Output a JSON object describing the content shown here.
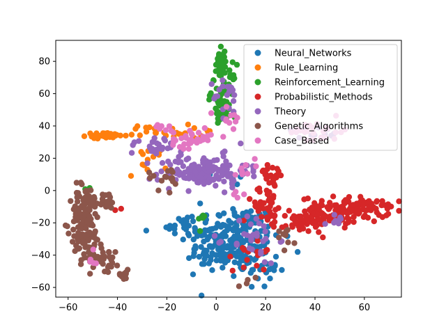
{
  "chart_data": {
    "type": "scatter",
    "title": "",
    "xlabel": "",
    "ylabel": "",
    "xlim": [
      -65,
      75
    ],
    "ylim": [
      -66,
      93
    ],
    "xticks": [
      -60,
      -40,
      -20,
      0,
      20,
      40,
      60
    ],
    "yticks": [
      -60,
      -40,
      -20,
      0,
      20,
      40,
      60,
      80
    ],
    "grid": false,
    "legend_position": "top-right",
    "series": [
      {
        "name": "Neural_Networks",
        "color": "#1f77b4",
        "clusters": [
          {
            "cx": 8,
            "cy": -30,
            "sx": 9,
            "sy": 11,
            "n": 190
          },
          {
            "cx": 0,
            "cy": -38,
            "sx": 6,
            "sy": 6,
            "n": 40
          },
          {
            "cx": 17,
            "cy": -48,
            "sx": 4,
            "sy": 6,
            "n": 25
          },
          {
            "cx": -12,
            "cy": -22,
            "sx": 4,
            "sy": 6,
            "n": 25
          },
          {
            "cx": -42,
            "cy": 35,
            "sx": 1,
            "sy": 1,
            "n": 3
          },
          {
            "cx": 6,
            "cy": 8,
            "sx": 4,
            "sy": 4,
            "n": 8
          }
        ]
      },
      {
        "name": "Rule_Learning",
        "color": "#ff7f0e",
        "clusters": [
          {
            "cx": -45,
            "cy": 34,
            "sx": 4,
            "sy": 0.8,
            "n": 45
          },
          {
            "cx": -23,
            "cy": 37,
            "sx": 6,
            "sy": 2,
            "n": 25
          },
          {
            "cx": -28,
            "cy": 18,
            "sx": 4,
            "sy": 5,
            "n": 12
          },
          {
            "cx": -5,
            "cy": 34,
            "sx": 2,
            "sy": 2,
            "n": 5
          }
        ]
      },
      {
        "name": "Reinforcement_Learning",
        "color": "#2ca02c",
        "clusters": [
          {
            "cx": 2,
            "cy": 79,
            "sx": 1.2,
            "sy": 4,
            "n": 35
          },
          {
            "cx": 3,
            "cy": 62,
            "sx": 2.5,
            "sy": 8,
            "n": 55
          },
          {
            "cx": 3,
            "cy": 47,
            "sx": 2.5,
            "sy": 3,
            "n": 20
          },
          {
            "cx": -6,
            "cy": -20,
            "sx": 2,
            "sy": 3,
            "n": 5
          },
          {
            "cx": -52,
            "cy": 1,
            "sx": 1,
            "sy": 1,
            "n": 2
          }
        ]
      },
      {
        "name": "Probabilistic_Methods",
        "color": "#d62728",
        "clusters": [
          {
            "cx": 52,
            "cy": -12,
            "sx": 9,
            "sy": 4,
            "n": 120
          },
          {
            "cx": 63,
            "cy": -8,
            "sx": 3,
            "sy": 1,
            "n": 20
          },
          {
            "cx": 35,
            "cy": -20,
            "sx": 6,
            "sy": 3,
            "n": 60
          },
          {
            "cx": 22,
            "cy": 10,
            "sx": 3,
            "sy": 4,
            "n": 20
          },
          {
            "cx": 20,
            "cy": -8,
            "sx": 5,
            "sy": 5,
            "n": 35
          },
          {
            "cx": 15,
            "cy": -38,
            "sx": 4,
            "sy": 6,
            "n": 18
          },
          {
            "cx": -40,
            "cy": -11,
            "sx": 1,
            "sy": 1,
            "n": 2
          }
        ]
      },
      {
        "name": "Theory",
        "color": "#9467bd",
        "clusters": [
          {
            "cx": -5,
            "cy": 12,
            "sx": 9,
            "sy": 5,
            "n": 140
          },
          {
            "cx": 5,
            "cy": 58,
            "sx": 3,
            "sy": 6,
            "n": 20
          },
          {
            "cx": -25,
            "cy": 28,
            "sx": 5,
            "sy": 3,
            "n": 25
          },
          {
            "cx": 15,
            "cy": -30,
            "sx": 5,
            "sy": 8,
            "n": 30
          },
          {
            "cx": 42,
            "cy": 34,
            "sx": 5,
            "sy": 3,
            "n": 10
          },
          {
            "cx": 45,
            "cy": -18,
            "sx": 4,
            "sy": 3,
            "n": 8
          }
        ]
      },
      {
        "name": "Genetic_Algorithms",
        "color": "#8c564b",
        "clusters": [
          {
            "cx": -53,
            "cy": -20,
            "sx": 3,
            "sy": 12,
            "n": 130
          },
          {
            "cx": -45,
            "cy": -6,
            "sx": 3,
            "sy": 3,
            "n": 20
          },
          {
            "cx": -45,
            "cy": -42,
            "sx": 3,
            "sy": 4,
            "n": 30
          },
          {
            "cx": -38,
            "cy": -52,
            "sx": 1.5,
            "sy": 1.5,
            "n": 12
          },
          {
            "cx": -20,
            "cy": 8,
            "sx": 4,
            "sy": 4,
            "n": 15
          },
          {
            "cx": 28,
            "cy": -28,
            "sx": 3,
            "sy": 4,
            "n": 10
          },
          {
            "cx": 12,
            "cy": -57,
            "sx": 2,
            "sy": 2,
            "n": 4
          }
        ]
      },
      {
        "name": "Case_Based",
        "color": "#e377c2",
        "clusters": [
          {
            "cx": -10,
            "cy": 32,
            "sx": 4,
            "sy": 3,
            "n": 35
          },
          {
            "cx": 5,
            "cy": 45,
            "sx": 3,
            "sy": 3,
            "n": 12
          },
          {
            "cx": 42,
            "cy": 36,
            "sx": 6,
            "sy": 4,
            "n": 25
          },
          {
            "cx": -22,
            "cy": 40,
            "sx": 2,
            "sy": 1,
            "n": 6
          },
          {
            "cx": 13,
            "cy": 17,
            "sx": 3,
            "sy": 3,
            "n": 8
          },
          {
            "cx": -50,
            "cy": -44,
            "sx": 2,
            "sy": 5,
            "n": 5
          },
          {
            "cx": 10,
            "cy": -5,
            "sx": 2,
            "sy": 2,
            "n": 4
          }
        ]
      }
    ]
  }
}
